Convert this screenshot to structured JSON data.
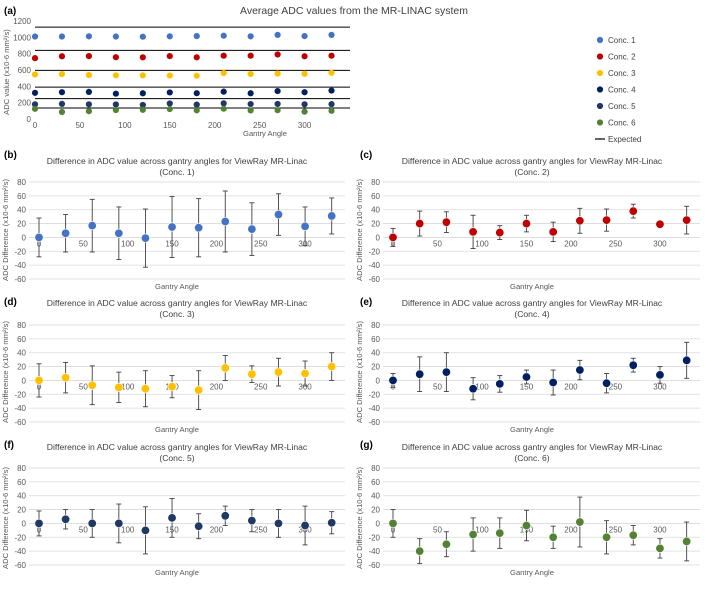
{
  "figure_labels": [
    "(a)",
    "(b)",
    "(c)",
    "(d)",
    "(e)",
    "(f)",
    "(g)"
  ],
  "chart_data": [
    {
      "type": "scatter",
      "panel": "(a)",
      "title": "Average ADC values from the MR-LINAC system",
      "xlabel": "Gantry Angle",
      "ylabel": "ADC value (x10-6 mm²/s)",
      "xlim": [
        0,
        345
      ],
      "ylim": [
        0,
        1200
      ],
      "xticks": [
        0,
        50,
        100,
        150,
        200,
        250,
        300
      ],
      "yticks": [
        0,
        200,
        400,
        600,
        800,
        1000,
        1200
      ],
      "x": [
        0,
        30,
        60,
        90,
        120,
        150,
        180,
        210,
        240,
        270,
        300,
        330
      ],
      "series": [
        {
          "name": "Conc. 1",
          "color": "#4472c4",
          "expected": 1125,
          "values": [
            1010,
            1010,
            1012,
            1010,
            1008,
            1012,
            1015,
            1020,
            1012,
            1030,
            1015,
            1030
          ]
        },
        {
          "name": "Conc. 2",
          "color": "#c00000",
          "expected": 840,
          "values": [
            745,
            768,
            770,
            757,
            755,
            770,
            755,
            775,
            775,
            790,
            768,
            775
          ]
        },
        {
          "name": "Conc. 3",
          "color": "#ffc000",
          "expected": 595,
          "values": [
            545,
            550,
            538,
            535,
            534,
            532,
            530,
            562,
            552,
            556,
            554,
            565
          ]
        },
        {
          "name": "Conc. 4",
          "color": "#002060",
          "expected": 390,
          "values": [
            320,
            328,
            332,
            310,
            315,
            325,
            316,
            335,
            315,
            342,
            328,
            348
          ]
        },
        {
          "name": "Conc. 5",
          "color": "#1f3864",
          "expected": 250,
          "values": [
            180,
            185,
            180,
            178,
            172,
            190,
            176,
            192,
            183,
            184,
            180,
            182
          ]
        },
        {
          "name": "Conc. 6",
          "color": "#548235",
          "expected": 135,
          "values": [
            125,
            86,
            95,
            110,
            112,
            122,
            106,
            126,
            105,
            108,
            90,
            100
          ]
        }
      ],
      "expected_label": "Expected"
    },
    {
      "type": "scatter",
      "panel": "(b)",
      "title": "Difference in ADC value across gantry angles for ViewRay MR-Linac",
      "subtitle": "(Conc. 1)",
      "xlabel": "Gantry Angle",
      "ylabel": "ADC Difference (x10-6 mm²/s)",
      "xlim": [
        0,
        345
      ],
      "ylim": [
        -60,
        80
      ],
      "xticks": [
        0,
        50,
        100,
        150,
        200,
        250,
        300
      ],
      "yticks": [
        -60,
        -40,
        -20,
        0,
        20,
        40,
        60,
        80
      ],
      "color": "#4472c4",
      "x": [
        0,
        30,
        60,
        90,
        120,
        150,
        180,
        210,
        240,
        270,
        300,
        330
      ],
      "values": [
        0,
        6,
        17,
        6,
        -1,
        15,
        14,
        23,
        12,
        33,
        16,
        31
      ],
      "errors": [
        28,
        27,
        38,
        38,
        42,
        44,
        42,
        44,
        38,
        30,
        28,
        26
      ]
    },
    {
      "type": "scatter",
      "panel": "(c)",
      "title": "Difference in ADC value across gantry angles for ViewRay MR-Linac",
      "subtitle": "(Conc. 2)",
      "xlabel": "Gantry Angle",
      "ylabel": "ADC Difference (x10-6 mm²/s)",
      "xlim": [
        0,
        345
      ],
      "ylim": [
        -60,
        80
      ],
      "xticks": [
        0,
        50,
        100,
        150,
        200,
        250,
        300
      ],
      "yticks": [
        -60,
        -40,
        -20,
        0,
        20,
        40,
        60,
        80
      ],
      "color": "#c00000",
      "x": [
        0,
        30,
        60,
        90,
        120,
        150,
        180,
        210,
        240,
        270,
        300,
        330
      ],
      "values": [
        0,
        20,
        22,
        8,
        7,
        20,
        8,
        24,
        25,
        38,
        19,
        25
      ],
      "errors": [
        13,
        18,
        15,
        24,
        10,
        12,
        14,
        18,
        16,
        10,
        4,
        20
      ]
    },
    {
      "type": "scatter",
      "panel": "(d)",
      "title": "Difference in ADC value across gantry angles for ViewRay MR-Linac",
      "subtitle": "(Conc. 3)",
      "xlabel": "Gantry Angle",
      "ylabel": "ADC Difference (x10-6 mm²/s)",
      "xlim": [
        0,
        345
      ],
      "ylim": [
        -60,
        80
      ],
      "xticks": [
        0,
        50,
        100,
        150,
        200,
        250,
        300
      ],
      "yticks": [
        -60,
        -40,
        -20,
        0,
        20,
        40,
        60,
        80
      ],
      "color": "#ffc000",
      "x": [
        0,
        30,
        60,
        90,
        120,
        150,
        180,
        210,
        240,
        270,
        300,
        330
      ],
      "values": [
        0,
        4,
        -7,
        -10,
        -12,
        -9,
        -14,
        18,
        9,
        12,
        10,
        20
      ],
      "errors": [
        24,
        22,
        28,
        22,
        26,
        16,
        28,
        18,
        12,
        20,
        18,
        20
      ]
    },
    {
      "type": "scatter",
      "panel": "(e)",
      "title": "Difference in ADC value across gantry angles for ViewRay MR-Linac",
      "subtitle": "(Conc. 4)",
      "xlabel": "Gantry Angle",
      "ylabel": "ADC Difference (x10-6 mm²/s)",
      "xlim": [
        0,
        345
      ],
      "ylim": [
        -60,
        80
      ],
      "xticks": [
        0,
        50,
        100,
        150,
        200,
        250,
        300
      ],
      "yticks": [
        -60,
        -40,
        -20,
        0,
        20,
        40,
        60,
        80
      ],
      "color": "#002060",
      "x": [
        0,
        30,
        60,
        90,
        120,
        150,
        180,
        210,
        240,
        270,
        300,
        330
      ],
      "values": [
        0,
        9,
        12,
        -12,
        -5,
        5,
        -3,
        15,
        -4,
        22,
        8,
        29
      ],
      "errors": [
        10,
        25,
        28,
        16,
        12,
        10,
        18,
        14,
        14,
        10,
        12,
        26
      ]
    },
    {
      "type": "scatter",
      "panel": "(f)",
      "title": "Difference in ADC value across gantry angles for ViewRay MR-Linac",
      "subtitle": "(Conc. 5)",
      "xlabel": "Gantry Angle",
      "ylabel": "ADC Difference (x10-6 mm²/s)",
      "xlim": [
        0,
        345
      ],
      "ylim": [
        -60,
        80
      ],
      "xticks": [
        0,
        50,
        100,
        150,
        200,
        250,
        300
      ],
      "yticks": [
        -60,
        -40,
        -20,
        0,
        20,
        40,
        60,
        80
      ],
      "color": "#1f3864",
      "x": [
        0,
        30,
        60,
        90,
        120,
        150,
        180,
        210,
        240,
        270,
        300,
        330
      ],
      "values": [
        0,
        6,
        0,
        0,
        -10,
        8,
        -4,
        11,
        4,
        0,
        -3,
        1
      ],
      "errors": [
        18,
        14,
        20,
        28,
        34,
        28,
        18,
        14,
        16,
        20,
        28,
        16
      ]
    },
    {
      "type": "scatter",
      "panel": "(g)",
      "title": "Difference in ADC value across gantry angles for ViewRay MR-Linac",
      "subtitle": "(Conc. 6)",
      "xlabel": "Gantry Angle",
      "ylabel": "ADC Difference (x10-6 mm²/s)",
      "xlim": [
        0,
        345
      ],
      "ylim": [
        -60,
        80
      ],
      "xticks": [
        0,
        50,
        100,
        150,
        200,
        250,
        300
      ],
      "yticks": [
        -60,
        -40,
        -20,
        0,
        20,
        40,
        60,
        80
      ],
      "color": "#548235",
      "x": [
        0,
        30,
        60,
        90,
        120,
        150,
        180,
        210,
        240,
        270,
        300,
        330
      ],
      "values": [
        0,
        -40,
        -30,
        -16,
        -14,
        -3,
        -20,
        2,
        -20,
        -17,
        -36,
        -26
      ],
      "errors": [
        20,
        18,
        18,
        24,
        22,
        22,
        16,
        36,
        24,
        14,
        14,
        28
      ]
    }
  ]
}
